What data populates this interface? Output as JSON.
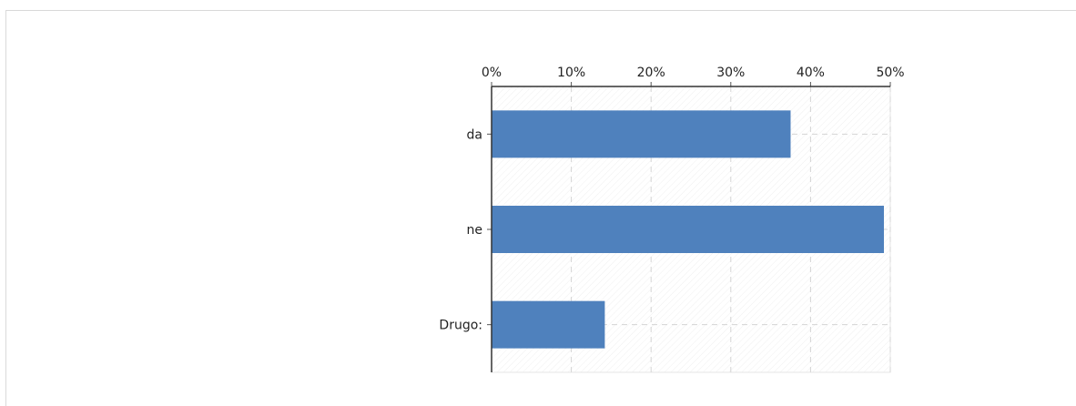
{
  "chart_data": {
    "type": "bar",
    "orientation": "horizontal",
    "title": "",
    "xlabel": "",
    "ylabel": "",
    "categories": [
      "da",
      "ne",
      "Drugo:"
    ],
    "values": [
      37.5,
      49.2,
      14.2
    ],
    "xlim": [
      0,
      50
    ],
    "x_ticks": [
      "0%",
      "10%",
      "20%",
      "30%",
      "40%",
      "50%"
    ],
    "x_tick_values": [
      0,
      10,
      20,
      30,
      40,
      50
    ],
    "grid": true,
    "legend": "none",
    "bar_color": "#4f81bd"
  }
}
